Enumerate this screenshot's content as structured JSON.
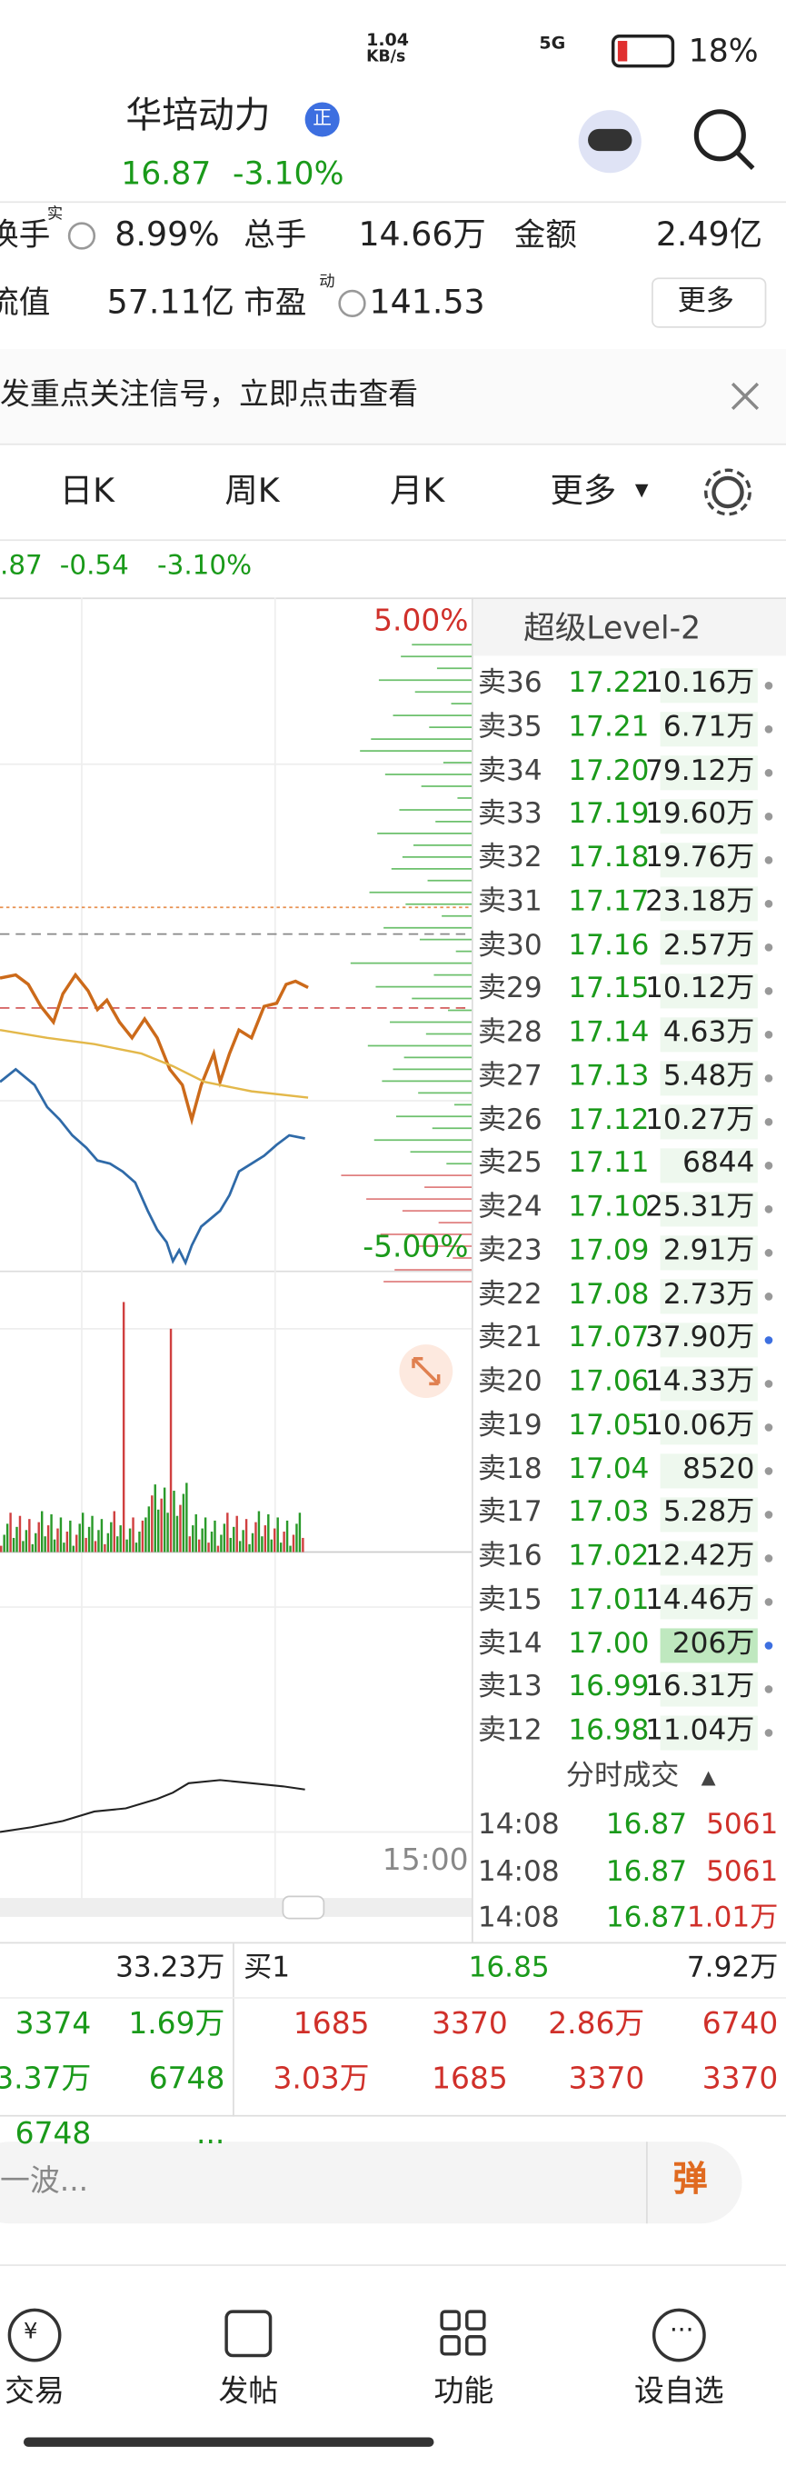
{
  "status_bar": {
    "speed": "1.04",
    "speed_unit": "KB/s",
    "network": "5G",
    "battery": "18%"
  },
  "header": {
    "name": "华培动力",
    "badge": "正",
    "price": "16.87",
    "change": "-3.10%"
  },
  "stats": {
    "turnover": {
      "label": "换手",
      "sup": "实",
      "value": "8.99%"
    },
    "volume": {
      "label": "总手",
      "value": "14.66万"
    },
    "amount": {
      "label": "金额",
      "value": "2.49亿"
    },
    "float_value": {
      "label": "流值",
      "value": "57.11亿"
    },
    "pe": {
      "label": "市盈",
      "sup": "动",
      "value": "141.53"
    },
    "more": "更多"
  },
  "banner": "发重点关注信号，立即点击查看",
  "tabs": [
    "日K",
    "周K",
    "月K",
    "更多"
  ],
  "quote_line": [
    ".87",
    "-0.54",
    "-3.10%"
  ],
  "chart_labels": {
    "upper": "5.00%",
    "lower": "-5.00%",
    "time_end": "15:00"
  },
  "order_book": {
    "title": "超级Level-2",
    "asks": [
      [
        "卖36",
        "17.22",
        "10.16万"
      ],
      [
        "卖35",
        "17.21",
        "6.71万"
      ],
      [
        "卖34",
        "17.20",
        "79.12万"
      ],
      [
        "卖33",
        "17.19",
        "19.60万"
      ],
      [
        "卖32",
        "17.18",
        "19.76万"
      ],
      [
        "卖31",
        "17.17",
        "23.18万"
      ],
      [
        "卖30",
        "17.16",
        "2.57万"
      ],
      [
        "卖29",
        "17.15",
        "10.12万"
      ],
      [
        "卖28",
        "17.14",
        "4.63万"
      ],
      [
        "卖27",
        "17.13",
        "5.48万"
      ],
      [
        "卖26",
        "17.12",
        "10.27万"
      ],
      [
        "卖25",
        "17.11",
        "6844"
      ],
      [
        "卖24",
        "17.10",
        "25.31万"
      ],
      [
        "卖23",
        "17.09",
        "2.91万"
      ],
      [
        "卖22",
        "17.08",
        "2.73万"
      ],
      [
        "卖21",
        "17.07",
        "37.90万"
      ],
      [
        "卖20",
        "17.06",
        "14.33万"
      ],
      [
        "卖19",
        "17.05",
        "10.06万"
      ],
      [
        "卖18",
        "17.04",
        "8520"
      ],
      [
        "卖17",
        "17.03",
        "5.28万"
      ],
      [
        "卖16",
        "17.02",
        "12.42万"
      ],
      [
        "卖15",
        "17.01",
        "14.46万"
      ],
      [
        "卖14",
        "17.00",
        "206万"
      ],
      [
        "卖13",
        "16.99",
        "16.31万"
      ],
      [
        "卖12",
        "16.98",
        "11.04万"
      ]
    ]
  },
  "trades": {
    "title": "分时成交",
    "rows": [
      [
        "14:08",
        "16.87",
        "5061"
      ],
      [
        "14:08",
        "16.87",
        "5061"
      ],
      [
        "14:08",
        "16.87",
        "1.01万"
      ]
    ]
  },
  "bottom": {
    "buy1": {
      "total": "33.23万",
      "label": "买1",
      "price": "16.85",
      "volume": "7.92万"
    },
    "grid": [
      [
        "3374",
        "1.69万",
        "1685",
        "3370",
        "2.86万",
        "6740"
      ],
      [
        "3.37万",
        "6748",
        "3.03万",
        "1685",
        "3370",
        "3370"
      ],
      [
        "6748",
        "..."
      ]
    ]
  },
  "input": {
    "placeholder": "一波...",
    "button": "弹"
  },
  "nav": [
    "交易",
    "发帖",
    "功能",
    "设自选"
  ]
}
